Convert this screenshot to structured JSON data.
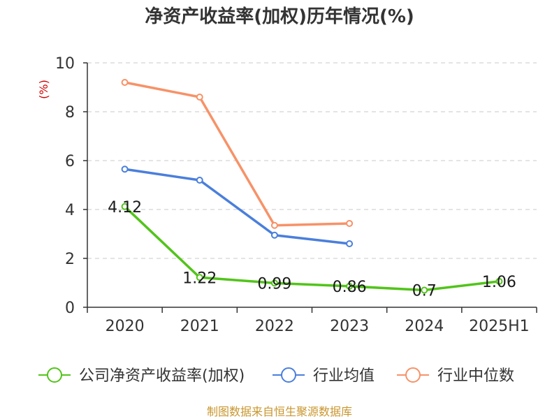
{
  "chart_data": {
    "type": "line",
    "title": "净资产收益率(加权)历年情况(%)",
    "ylabel": "(%)",
    "xlabel": "",
    "categories": [
      "2020",
      "2021",
      "2022",
      "2023",
      "2024",
      "2025H1"
    ],
    "ylim": [
      0,
      10
    ],
    "yticks": [
      0,
      2,
      4,
      6,
      8,
      10
    ],
    "grid": true,
    "legend_position": "bottom",
    "series": [
      {
        "name": "公司净资产收益率(加权)",
        "color": "#52c41a",
        "values": [
          4.12,
          1.22,
          0.99,
          0.86,
          0.7,
          1.06
        ],
        "labels": [
          "4.12",
          "1.22",
          "0.99",
          "0.86",
          "0.7",
          "1.06"
        ]
      },
      {
        "name": "行业均值",
        "color": "#4a7fdc",
        "values": [
          5.65,
          5.2,
          2.95,
          2.6,
          null,
          null
        ]
      },
      {
        "name": "行业中位数",
        "color": "#f79268",
        "values": [
          9.2,
          8.6,
          3.35,
          3.43,
          null,
          null
        ]
      }
    ]
  },
  "source_text": "制图数据来自恒生聚源数据库",
  "colors": {
    "unit": "#cc0000",
    "source": "#c9962e",
    "axis": "#333333",
    "grid": "#c8c8c8"
  }
}
